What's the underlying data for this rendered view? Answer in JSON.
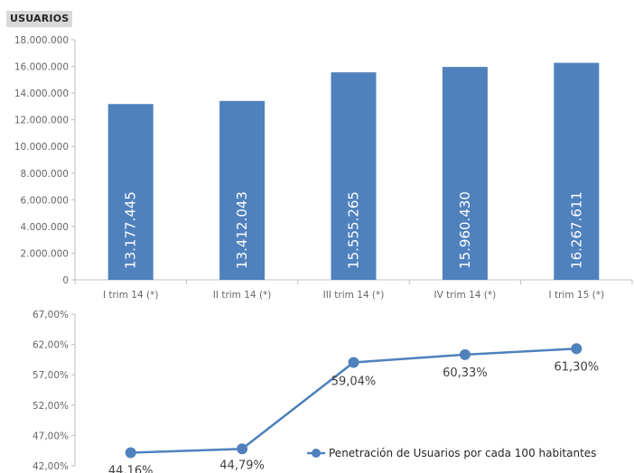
{
  "header_label": "USUARIOS",
  "chart_data": [
    {
      "type": "bar",
      "title": "",
      "categories": [
        "I trim 14 (*)",
        "II trim 14 (*)",
        "III trim 14 (*)",
        "IV trim 14 (*)",
        "I trim 15 (*)"
      ],
      "values": [
        13177445,
        13412043,
        15555265,
        15960430,
        16267611
      ],
      "value_labels": [
        "13.177.445",
        "13.412.043",
        "15.555.265",
        "15.960.430",
        "16.267.611"
      ],
      "ylim": [
        0,
        18000000
      ],
      "yticks": [
        "0",
        "2.000.000",
        "4.000.000",
        "6.000.000",
        "8.000.000",
        "10.000.000",
        "12.000.000",
        "14.000.000",
        "16.000.000",
        "18.000.000"
      ],
      "grid": false,
      "color": "#4f81bd"
    },
    {
      "type": "line",
      "categories": [
        "I trim 14 (*)",
        "II trim 14 (*)",
        "III trim 14 (*)",
        "IV trim 14 (*)",
        "I trim 15 (*)"
      ],
      "series": [
        {
          "name": "Penetración de Usuarios por cada 100 habitantes",
          "values": [
            44.16,
            44.79,
            59.04,
            60.33,
            61.3
          ],
          "value_labels": [
            "44,16%",
            "44,79%",
            "59,04%",
            "60,33%",
            "61,30%"
          ]
        }
      ],
      "ylim": [
        42,
        67
      ],
      "yticks": [
        "42,00%",
        "47,00%",
        "52,00%",
        "57,00%",
        "62,00%",
        "67,00%"
      ],
      "legend": "bottom-right",
      "grid": false,
      "color": "#4f81bd"
    }
  ]
}
